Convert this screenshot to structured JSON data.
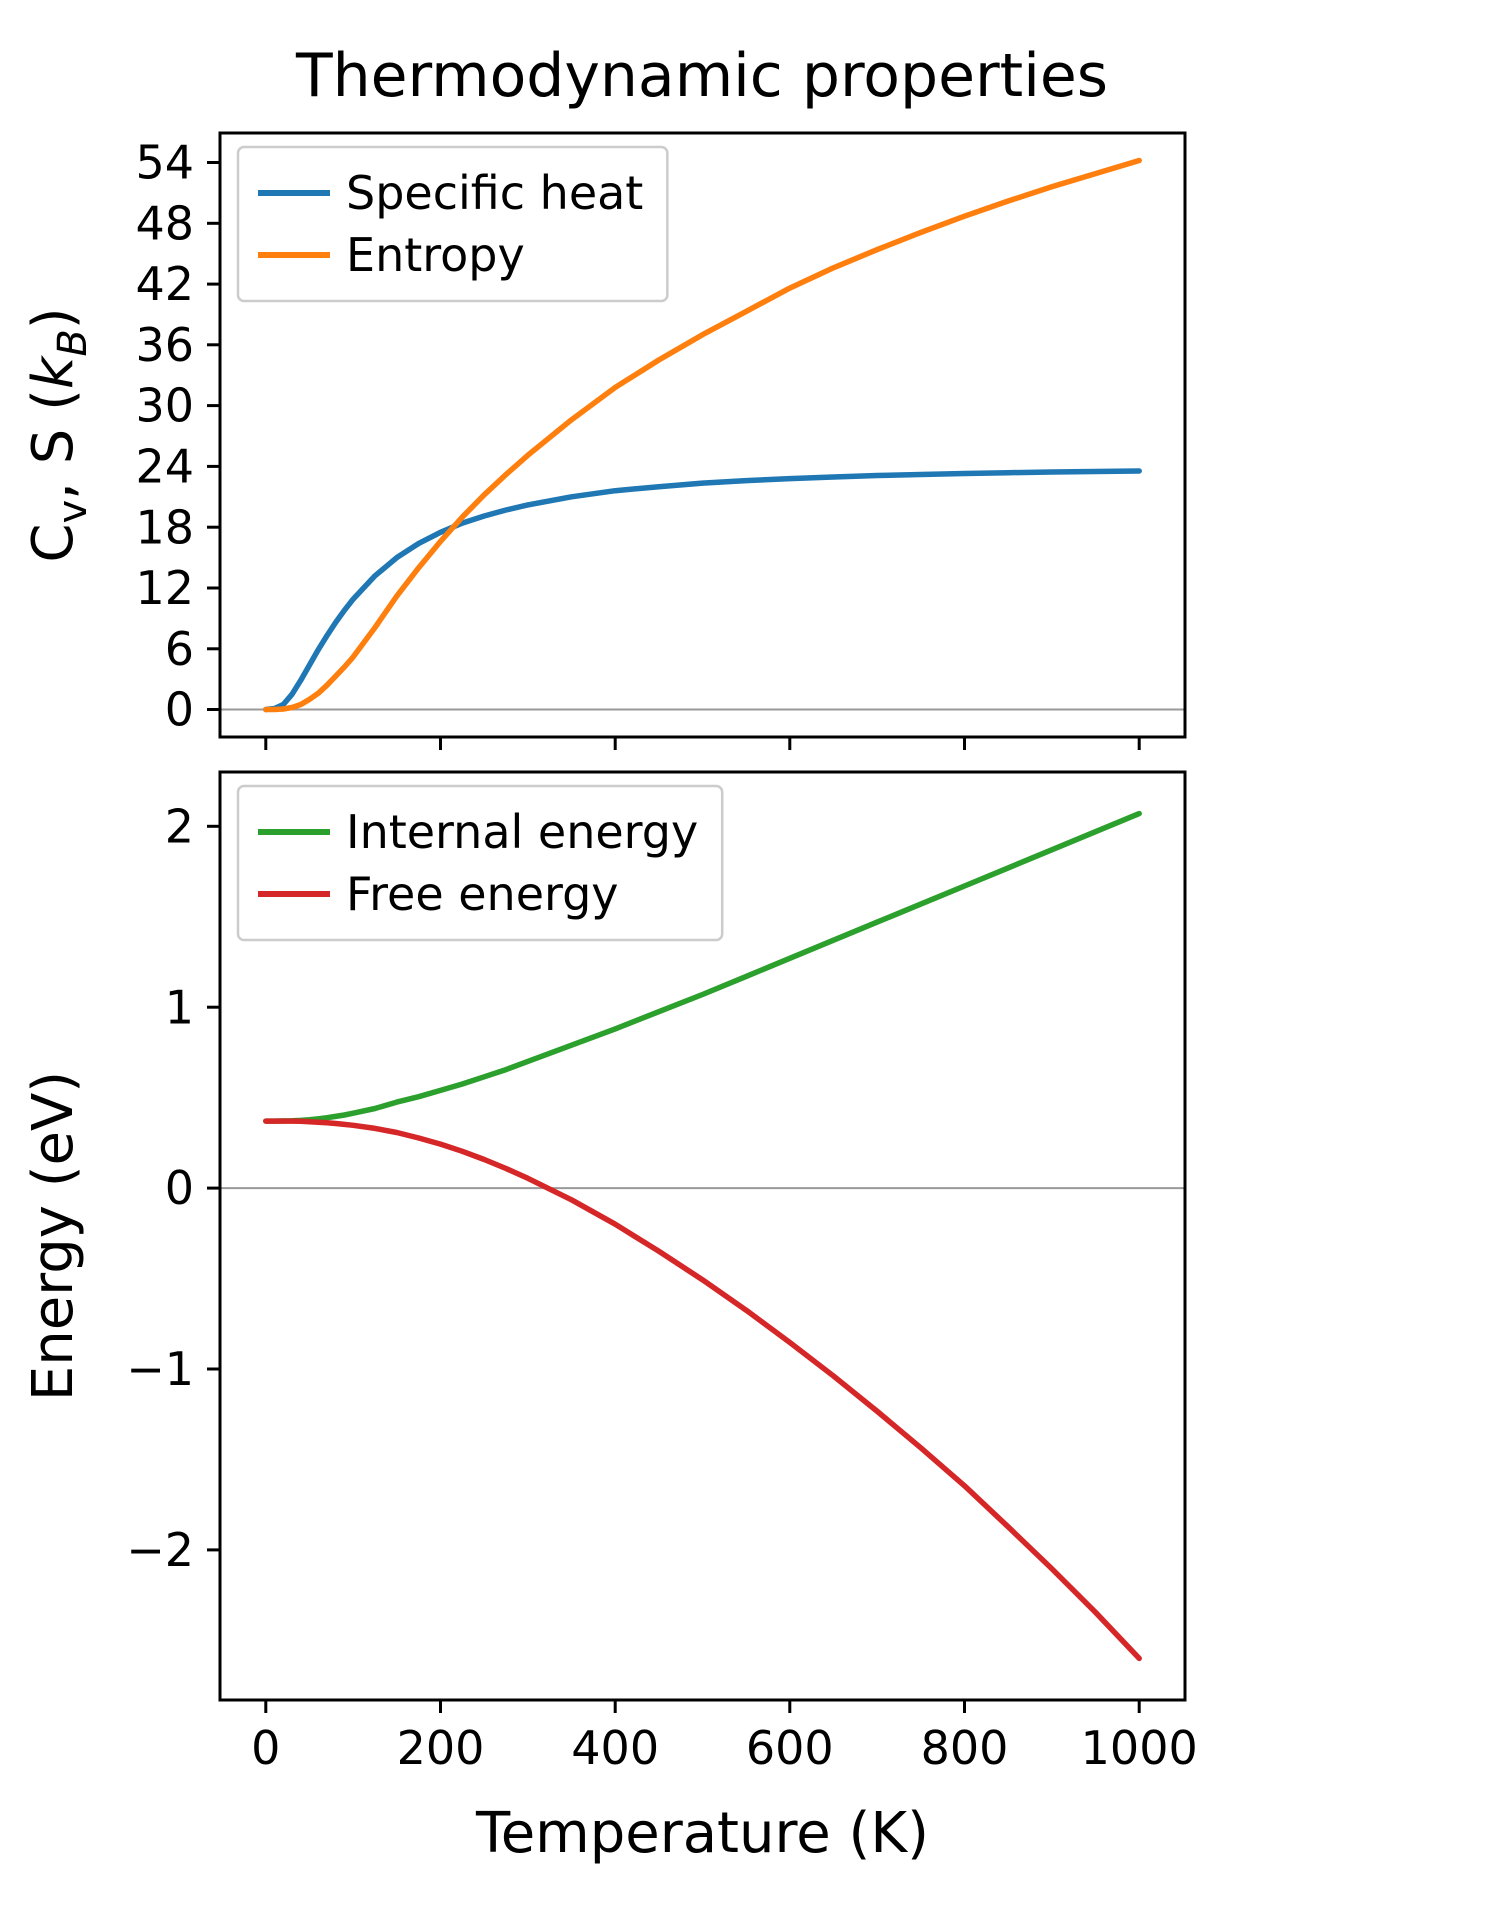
{
  "title": "Thermodynamic properties",
  "colors": {
    "specific_heat": "#1f77b4",
    "entropy": "#ff7f0e",
    "internal_energy": "#2ca02c",
    "free_energy": "#d62728",
    "zero_line": "#999999",
    "axes": "#000000",
    "legend_edge": "#cccccc",
    "background": "#ffffff"
  },
  "chart_data": [
    {
      "type": "line",
      "title": "Thermodynamic properties",
      "xlabel": "",
      "ylabel": "C_v, S (k_B)",
      "ylabel_segments": [
        {
          "text": "C"
        },
        {
          "text": "v",
          "sub": true
        },
        {
          "text": ", S ("
        },
        {
          "text": "k",
          "italic": true
        },
        {
          "text": "B",
          "sub": true,
          "italic": true
        },
        {
          "text": ")"
        }
      ],
      "xlim": [
        -52.5,
        1052.5
      ],
      "ylim": [
        -2.71,
        56.91
      ],
      "xtick_values": [
        0,
        200,
        400,
        600,
        800,
        1000
      ],
      "xtick_labels": [],
      "ytick_values": [
        0,
        6,
        12,
        18,
        24,
        30,
        36,
        42,
        48,
        54
      ],
      "ytick_labels": [
        "0",
        "6",
        "12",
        "18",
        "24",
        "30",
        "36",
        "42",
        "48",
        "54"
      ],
      "grid": false,
      "zero_line": true,
      "legend_position": "upper-left",
      "x": [
        0,
        10,
        20,
        30,
        40,
        50,
        60,
        70,
        80,
        90,
        100,
        125,
        150,
        175,
        200,
        225,
        250,
        275,
        300,
        350,
        400,
        450,
        500,
        550,
        600,
        650,
        700,
        750,
        800,
        850,
        900,
        950,
        1000
      ],
      "series": [
        {
          "name": "Specific heat",
          "color": "#1f77b4",
          "values": [
            0,
            0.1,
            0.5,
            1.5,
            2.9,
            4.4,
            5.9,
            7.3,
            8.6,
            9.8,
            10.9,
            13.2,
            15.0,
            16.4,
            17.5,
            18.4,
            19.1,
            19.7,
            20.2,
            21.0,
            21.6,
            22.0,
            22.35,
            22.6,
            22.8,
            22.95,
            23.1,
            23.2,
            23.3,
            23.38,
            23.45,
            23.5,
            23.55
          ]
        },
        {
          "name": "Entropy",
          "color": "#ff7f0e",
          "values": [
            0,
            0,
            0.05,
            0.2,
            0.5,
            1.0,
            1.6,
            2.4,
            3.3,
            4.2,
            5.2,
            8.1,
            11.2,
            14.0,
            16.6,
            19.0,
            21.2,
            23.2,
            25.1,
            28.6,
            31.8,
            34.5,
            37.0,
            39.3,
            41.6,
            43.6,
            45.4,
            47.1,
            48.7,
            50.2,
            51.6,
            52.9,
            54.2
          ]
        }
      ]
    },
    {
      "type": "line",
      "title": "",
      "xlabel": "Temperature (K)",
      "ylabel": "Energy (eV)",
      "xlim": [
        -52.5,
        1052.5
      ],
      "ylim": [
        -2.83,
        2.3
      ],
      "xtick_values": [
        0,
        200,
        400,
        600,
        800,
        1000
      ],
      "xtick_labels": [
        "0",
        "200",
        "400",
        "600",
        "800",
        "1000"
      ],
      "ytick_values": [
        -2,
        -1,
        0,
        1,
        2
      ],
      "ytick_labels": [
        "−2",
        "−1",
        "0",
        "1",
        "2"
      ],
      "grid": false,
      "zero_line": true,
      "legend_position": "upper-left",
      "x": [
        0,
        10,
        20,
        30,
        40,
        50,
        60,
        70,
        80,
        90,
        100,
        125,
        150,
        175,
        200,
        225,
        250,
        275,
        300,
        350,
        400,
        450,
        500,
        550,
        600,
        650,
        700,
        750,
        800,
        850,
        900,
        950,
        1000
      ],
      "series": [
        {
          "name": "Internal energy",
          "color": "#2ca02c",
          "values": [
            0.37,
            0.37,
            0.371,
            0.372,
            0.374,
            0.378,
            0.383,
            0.389,
            0.396,
            0.404,
            0.414,
            0.44,
            0.475,
            0.505,
            0.54,
            0.575,
            0.615,
            0.655,
            0.7,
            0.79,
            0.88,
            0.975,
            1.07,
            1.17,
            1.27,
            1.37,
            1.47,
            1.57,
            1.67,
            1.77,
            1.87,
            1.97,
            2.07
          ]
        },
        {
          "name": "Free energy",
          "color": "#d62728",
          "values": [
            0.37,
            0.37,
            0.37,
            0.37,
            0.369,
            0.367,
            0.364,
            0.361,
            0.357,
            0.352,
            0.347,
            0.33,
            0.307,
            0.277,
            0.243,
            0.203,
            0.158,
            0.108,
            0.054,
            -0.065,
            -0.2,
            -0.349,
            -0.507,
            -0.675,
            -0.853,
            -1.039,
            -1.234,
            -1.436,
            -1.646,
            -1.873,
            -2.104,
            -2.345,
            -2.6
          ]
        }
      ]
    }
  ]
}
